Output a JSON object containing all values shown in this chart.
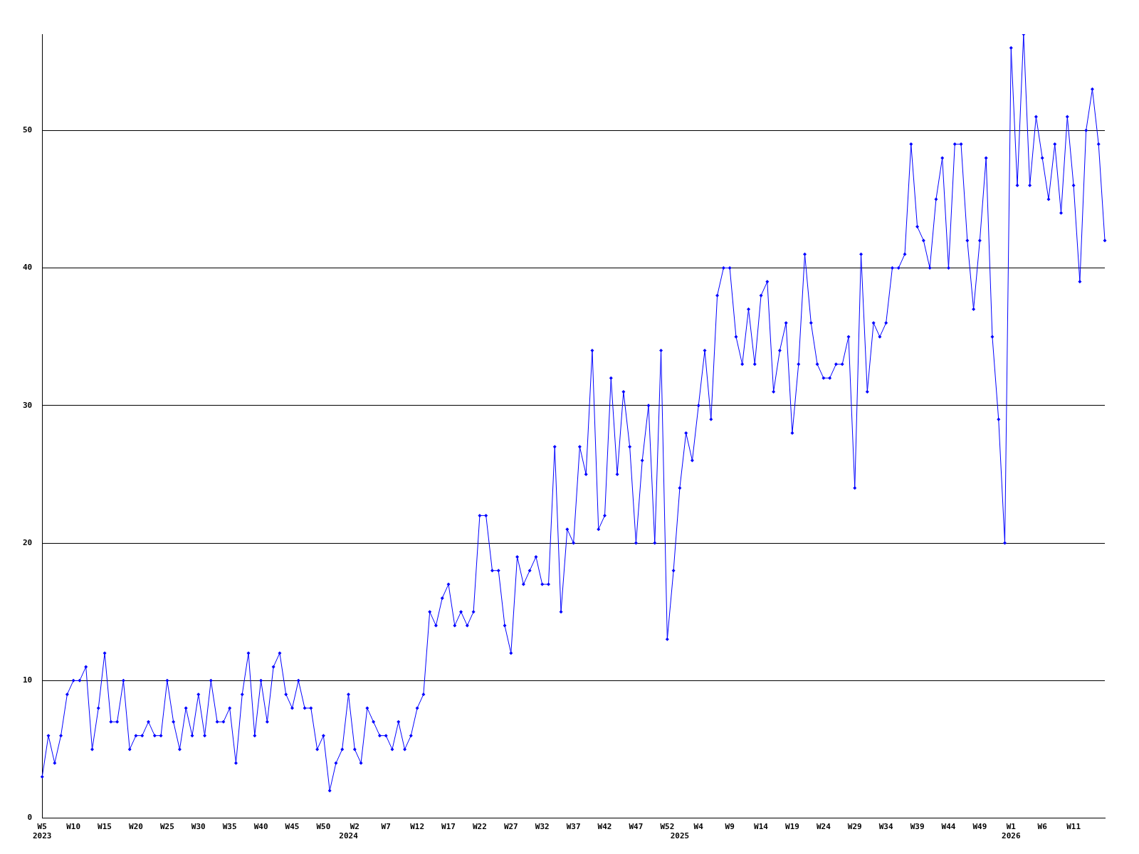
{
  "chart_data": {
    "type": "line",
    "categories": [
      "W5\n2023",
      null,
      null,
      null,
      null,
      "W10",
      null,
      null,
      null,
      null,
      "W15",
      null,
      null,
      null,
      null,
      "W20",
      null,
      null,
      null,
      null,
      "W25",
      null,
      null,
      null,
      null,
      "W30",
      null,
      null,
      null,
      null,
      "W35",
      null,
      null,
      null,
      null,
      "W40",
      null,
      null,
      null,
      null,
      "W45",
      null,
      null,
      null,
      null,
      "W50",
      null,
      null,
      null,
      "\n2024",
      "W2",
      null,
      null,
      null,
      null,
      "W7",
      null,
      null,
      null,
      null,
      "W12",
      null,
      null,
      null,
      null,
      "W17",
      null,
      null,
      null,
      null,
      "W22",
      null,
      null,
      null,
      null,
      "W27",
      null,
      null,
      null,
      null,
      "W32",
      null,
      null,
      null,
      null,
      "W37",
      null,
      null,
      null,
      null,
      "W42",
      null,
      null,
      null,
      null,
      "W47",
      null,
      null,
      null,
      null,
      "W52",
      null,
      "\n2025",
      null,
      null,
      "W4",
      null,
      null,
      null,
      null,
      "W9",
      null,
      null,
      null,
      null,
      "W14",
      null,
      null,
      null,
      null,
      "W19",
      null,
      null,
      null,
      null,
      "W24",
      null,
      null,
      null,
      null,
      "W29",
      null,
      null,
      null,
      null,
      "W34",
      null,
      null,
      null,
      null,
      "W39",
      null,
      null,
      null,
      null,
      "W44",
      null,
      null,
      null,
      null,
      "W49",
      null,
      null,
      null,
      null,
      "W1\n2026",
      null,
      null,
      null,
      null,
      "W6",
      null,
      null,
      null,
      null,
      "W11",
      null,
      null,
      null,
      null,
      null
    ],
    "series": [
      {
        "color": "#0000ff",
        "values": [
          3,
          6,
          4,
          6,
          9,
          10,
          10,
          11,
          5,
          8,
          12,
          7,
          7,
          10,
          5,
          6,
          6,
          7,
          6,
          6,
          10,
          7,
          5,
          8,
          6,
          9,
          6,
          10,
          7,
          7,
          8,
          4,
          9,
          12,
          6,
          10,
          7,
          11,
          12,
          9,
          8,
          10,
          8,
          8,
          5,
          6,
          2,
          4,
          5,
          9,
          5,
          4,
          8,
          7,
          6,
          6,
          5,
          7,
          5,
          6,
          8,
          9,
          15,
          14,
          16,
          17,
          14,
          15,
          14,
          15,
          22,
          22,
          18,
          18,
          14,
          12,
          19,
          17,
          18,
          19,
          17,
          17,
          27,
          15,
          21,
          20,
          27,
          25,
          34,
          21,
          22,
          32,
          25,
          31,
          27,
          20,
          26,
          30,
          20,
          34,
          13,
          18,
          24,
          28,
          26,
          30,
          34,
          29,
          38,
          40,
          40,
          35,
          33,
          37,
          33,
          38,
          39,
          31,
          34,
          36,
          28,
          33,
          41,
          36,
          33,
          32,
          32,
          33,
          33,
          35,
          24,
          41,
          31,
          36,
          35,
          36,
          40,
          40,
          41,
          49,
          43,
          42,
          40,
          45,
          48,
          40,
          49,
          49,
          42,
          37,
          42,
          48,
          35,
          29,
          20,
          56,
          46,
          57,
          46,
          51,
          48,
          45,
          49,
          44,
          51,
          46,
          39,
          50,
          53,
          49,
          42
        ]
      }
    ],
    "ylim": [
      0,
      57
    ],
    "yticks": [
      0,
      10,
      20,
      30,
      40,
      50
    ],
    "grid": "y",
    "marker": "diamond",
    "line_style": "solid",
    "legend": false
  }
}
